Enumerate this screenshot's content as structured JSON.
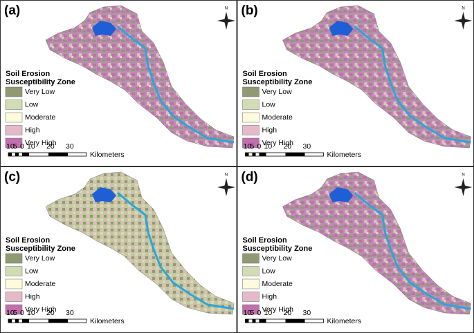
{
  "panels": [
    {
      "label": "(a)",
      "north": "N",
      "legend": {
        "title_lines": [
          "Soil Erosion",
          "Susceptibility Zone"
        ],
        "items": [
          {
            "label": "Very Low",
            "color": "#8e9b72"
          },
          {
            "label": "Low",
            "color": "#d2dcb4"
          },
          {
            "label": "Moderate",
            "color": "#fefbdc"
          },
          {
            "label": "High",
            "color": "#e6b9c8"
          },
          {
            "label": "Very High",
            "color": "#c070ac"
          }
        ]
      },
      "scale": {
        "labels": [
          10,
          5,
          0,
          10,
          20,
          30
        ],
        "unit": "Kilometers"
      }
    },
    {
      "label": "(b)",
      "north": "N",
      "legend": {
        "title_lines": [
          "Soil Erosion",
          "Susceptibility Zone"
        ],
        "items": [
          {
            "label": "Very Low",
            "color": "#8e9b72"
          },
          {
            "label": "Low",
            "color": "#d2dcb4"
          },
          {
            "label": "Moderate",
            "color": "#fefbdc"
          },
          {
            "label": "High",
            "color": "#e6b9c8"
          },
          {
            "label": "Very High",
            "color": "#c070ac"
          }
        ]
      },
      "scale": {
        "labels": [
          10,
          5,
          0,
          10,
          20,
          30
        ],
        "unit": "Kilometers"
      }
    },
    {
      "label": "(c)",
      "north": "N",
      "legend": {
        "title_lines": [
          "Soil Erosion",
          "Susceptibility Zone"
        ],
        "items": [
          {
            "label": "Very Low",
            "color": "#8e9b72"
          },
          {
            "label": "Low",
            "color": "#d2dcb4"
          },
          {
            "label": "Moderate",
            "color": "#fefbdc"
          },
          {
            "label": "High",
            "color": "#e6b9c8"
          },
          {
            "label": "Very High",
            "color": "#c070ac"
          }
        ]
      },
      "scale": {
        "labels": [
          10,
          5,
          0,
          10,
          20,
          30
        ],
        "unit": "Kilometers"
      }
    },
    {
      "label": "(d)",
      "north": "N",
      "legend": {
        "title_lines": [
          "Soil Erosion",
          "Susceptibility Zone"
        ],
        "items": [
          {
            "label": "Very Low",
            "color": "#8e9b72"
          },
          {
            "label": "Low",
            "color": "#d2dcb4"
          },
          {
            "label": "Moderate",
            "color": "#fefbdc"
          },
          {
            "label": "High",
            "color": "#e6b9c8"
          },
          {
            "label": "Very High",
            "color": "#c070ac"
          }
        ]
      },
      "scale": {
        "labels": [
          10,
          5,
          0,
          10,
          20,
          30
        ],
        "unit": "Kilometers"
      }
    }
  ]
}
